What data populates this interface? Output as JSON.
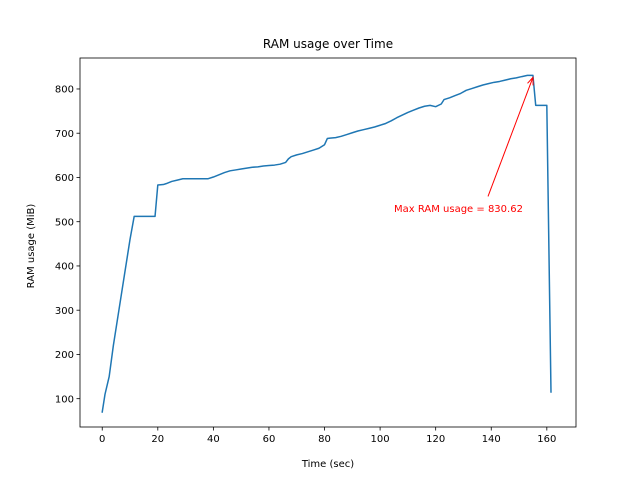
{
  "chart_data": {
    "type": "line",
    "title": "RAM usage over Time",
    "xlabel": "Time (sec)",
    "ylabel": "RAM usage (MiB)",
    "xlim": [
      -8,
      170.5
    ],
    "ylim": [
      36,
      870
    ],
    "xticks": [
      0,
      20,
      40,
      60,
      80,
      100,
      120,
      140,
      160
    ],
    "yticks": [
      100,
      200,
      300,
      400,
      500,
      600,
      700,
      800
    ],
    "grid": false,
    "legend": "none",
    "series": [
      {
        "color": "#1f77b4",
        "x": [
          0,
          1,
          2.5,
          4,
          6,
          8,
          10,
          11.5,
          13,
          15,
          17,
          19,
          20,
          22,
          23,
          25,
          27,
          29,
          30,
          32,
          35,
          38,
          40,
          42,
          44,
          46,
          48,
          50,
          52,
          54,
          56,
          58,
          60,
          62,
          64,
          66,
          67,
          68,
          70,
          72,
          74,
          76,
          78,
          80,
          81,
          82,
          84,
          86,
          88,
          90,
          92,
          94,
          96,
          98,
          100,
          102,
          104,
          106,
          108,
          110,
          112,
          114,
          116,
          118,
          120,
          122,
          123,
          125,
          127,
          129,
          131,
          133,
          135,
          137,
          139,
          141,
          143,
          145,
          147,
          149,
          151,
          153,
          155,
          156,
          158,
          160,
          161.5
        ],
        "y": [
          70,
          110,
          150,
          220,
          300,
          380,
          460,
          512,
          512,
          512,
          512,
          512,
          583,
          584,
          586,
          591,
          594,
          597,
          597,
          597,
          597,
          597,
          601,
          606,
          611,
          615,
          617,
          619,
          621,
          623,
          624,
          626,
          627,
          628,
          630,
          634,
          642,
          647,
          651,
          654,
          658,
          662,
          666,
          674,
          688,
          689,
          690,
          693,
          697,
          701,
          705,
          708,
          711,
          714,
          718,
          722,
          728,
          735,
          741,
          747,
          752,
          757,
          761,
          763,
          760,
          766,
          776,
          780,
          785,
          790,
          797,
          801,
          805,
          809,
          812,
          815,
          817,
          820,
          823,
          825,
          828,
          830.62,
          830.62,
          763,
          763,
          763,
          115
        ]
      }
    ],
    "annotations": [
      {
        "text": "Max RAM usage = 830.62",
        "xy": [
          155,
          830.62
        ],
        "xytext": [
          105,
          530
        ],
        "color": "#ff0000"
      }
    ]
  }
}
